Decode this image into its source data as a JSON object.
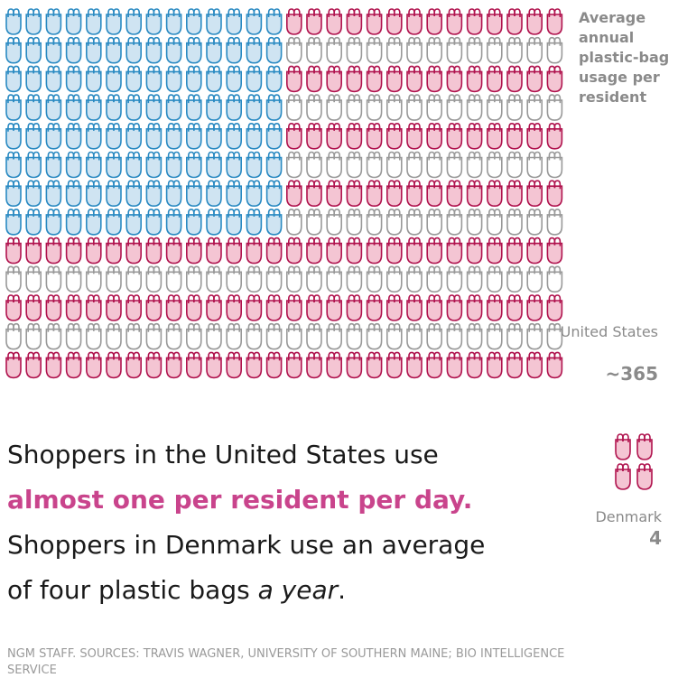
{
  "colors": {
    "blue_fill": "#cfe4f2",
    "blue_stroke": "#2a8ac2",
    "pink_fill": "#f4c5d3",
    "pink_stroke": "#b0134e",
    "white_fill": "#ffffff",
    "gray_stroke": "#999999",
    "highlight": "#c9448c"
  },
  "chart_data": {
    "type": "pictogram",
    "title": "Average annual plastic-bag usage per resident",
    "series": [
      {
        "name": "United States",
        "display": "~365",
        "values": [
          365
        ]
      },
      {
        "name": "Denmark",
        "display": "4",
        "values": [
          4
        ]
      }
    ]
  },
  "headline": {
    "part1": "Shoppers in the United States use",
    "highlight": "almost one per resident per day.",
    "part2": "Shoppers in Denmark use an average of four plastic bags ",
    "italic": "a year",
    "end": "."
  },
  "source": "NGM STAFF. SOURCES: TRAVIS WAGNER, UNIVERSITY OF SOUTHERN MAINE; BIO INTELLIGENCE SERVICE"
}
